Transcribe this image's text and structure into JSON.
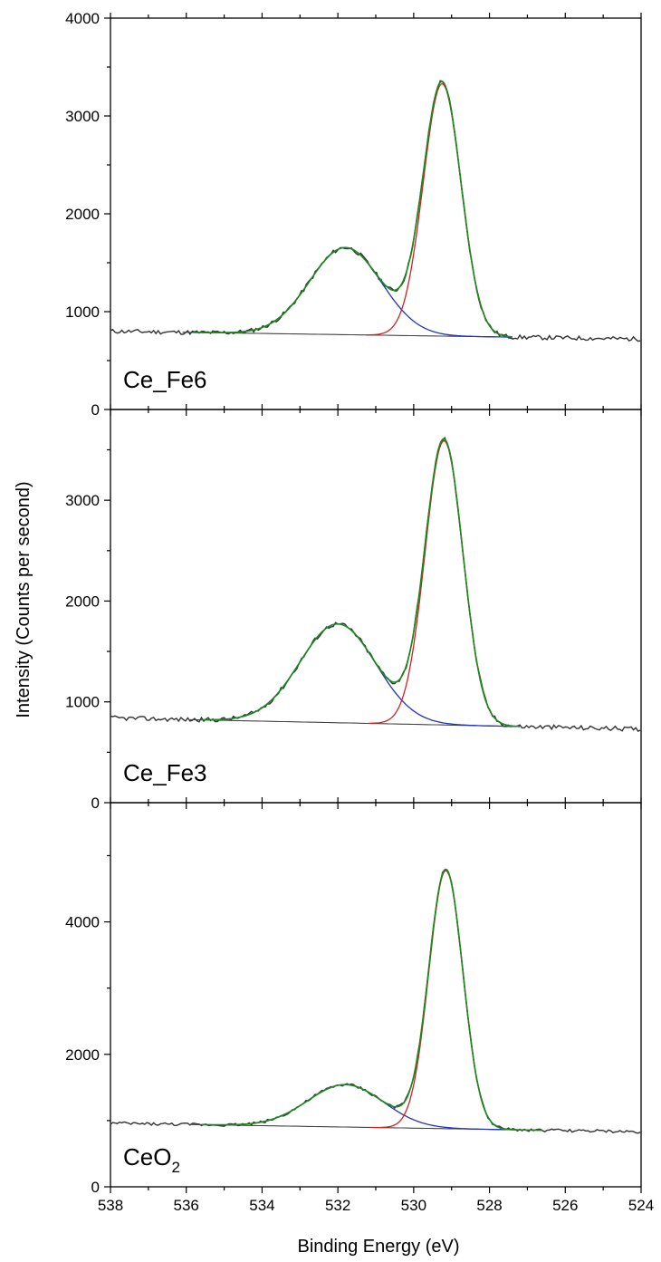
{
  "chart_data": {
    "type": "line",
    "xlabel": "Binding Energy (eV)",
    "ylabel": "Intensity (Counts per second)",
    "xlim": [
      538,
      524
    ],
    "x_ticks": [
      538,
      536,
      534,
      532,
      530,
      528,
      526,
      524
    ],
    "x_reversed": true,
    "colors": {
      "raw": "#333333",
      "background": "#444444",
      "lattice_oxygen_peak": "#cc2222",
      "surface_oxygen_peak": "#2233bb",
      "envelope": "#1a8a1a"
    },
    "panels": [
      {
        "label": "Ce_Fe6",
        "label_sub": "",
        "ylim": [
          0,
          4000
        ],
        "y_ticks": [
          0,
          1000,
          2000,
          3000,
          4000
        ],
        "raw_range": [
          538,
          524
        ],
        "background": [
          800,
          720
        ],
        "fit_range": [
          535.8,
          527.4
        ],
        "peaks": [
          {
            "center": 531.8,
            "height": 890,
            "sigma": 0.95
          },
          {
            "center": 529.25,
            "height": 2580,
            "sigma": 0.5
          }
        ]
      },
      {
        "label": "Ce_Fe3",
        "label_sub": "",
        "ylim": [
          0,
          3900
        ],
        "y_ticks": [
          0,
          1000,
          2000,
          3000
        ],
        "raw_range": [
          538,
          524
        ],
        "background": [
          840,
          730
        ],
        "fit_range": [
          535.6,
          527.2
        ],
        "peaks": [
          {
            "center": 532.0,
            "height": 980,
            "sigma": 1.0
          },
          {
            "center": 529.2,
            "height": 2820,
            "sigma": 0.5
          }
        ]
      },
      {
        "label": "CeO",
        "label_sub": "2",
        "ylim": [
          0,
          5800
        ],
        "y_ticks": [
          0,
          2000,
          4000
        ],
        "raw_range": [
          538,
          524
        ],
        "background": [
          960,
          830
        ],
        "fit_range": [
          535.6,
          526.6
        ],
        "peaks": [
          {
            "center": 531.8,
            "height": 640,
            "sigma": 1.0
          },
          {
            "center": 529.15,
            "height": 3900,
            "sigma": 0.45
          }
        ]
      }
    ]
  }
}
